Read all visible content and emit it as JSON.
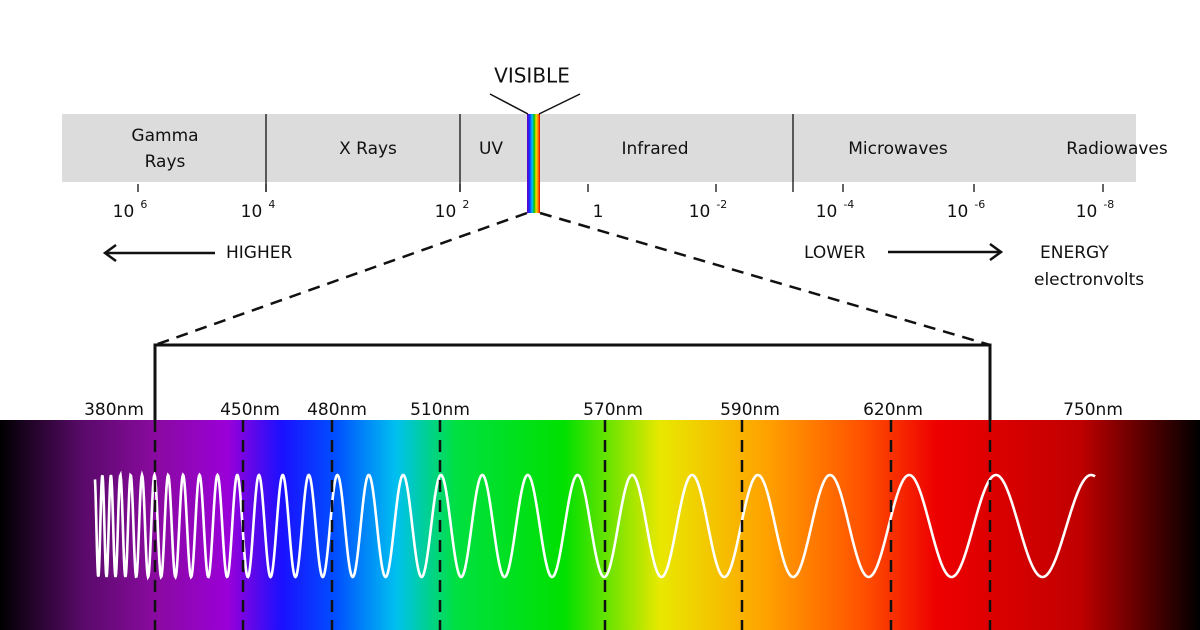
{
  "visible_label": "VISIBLE",
  "bands": [
    {
      "lines": [
        "Gamma",
        "Rays"
      ]
    },
    {
      "lines": [
        "X Rays"
      ]
    },
    {
      "lines": [
        "UV"
      ]
    },
    {
      "lines": [
        "Infrared"
      ]
    },
    {
      "lines": [
        "Microwaves"
      ]
    },
    {
      "lines": [
        "Radiowaves"
      ]
    }
  ],
  "energy_ticks": [
    {
      "base": "10",
      "exp": "6"
    },
    {
      "base": "10",
      "exp": "4"
    },
    {
      "base": "10",
      "exp": "2"
    },
    {
      "base": "1"
    },
    {
      "base": "10",
      "exp": "-2"
    },
    {
      "base": "10",
      "exp": "-4"
    },
    {
      "base": "10",
      "exp": "-6"
    },
    {
      "base": "10",
      "exp": "-8"
    }
  ],
  "higher_label": "HIGHER",
  "lower_label": "LOWER",
  "energy_label": "ENERGY",
  "unit_label": "electronvolts",
  "wavelengths": [
    "380nm",
    "450nm",
    "480nm",
    "510nm",
    "570nm",
    "590nm",
    "620nm",
    "750nm"
  ]
}
